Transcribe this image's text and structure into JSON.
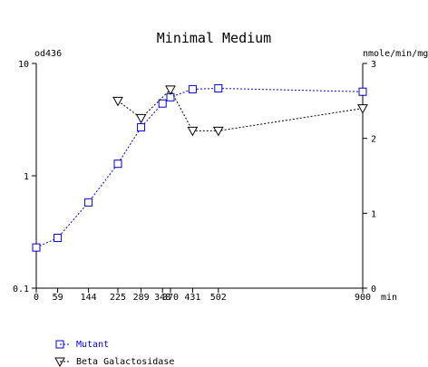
{
  "chart_data": {
    "type": "line",
    "title": "Minimal Medium",
    "x_unit": "min",
    "xlim": [
      0,
      900
    ],
    "x_ticks": [
      0,
      59,
      144,
      225,
      289,
      348,
      370,
      431,
      502,
      900
    ],
    "left_axis": {
      "label": "od436",
      "scale": "log",
      "ylim": [
        0.1,
        10
      ],
      "ticks": [
        0.1,
        1,
        10
      ],
      "tick_labels": [
        "0.1",
        "1",
        "10"
      ]
    },
    "right_axis": {
      "label": "nmole/min/mg",
      "scale": "linear",
      "ylim": [
        0,
        3
      ],
      "ticks": [
        0,
        1,
        2,
        3
      ],
      "tick_labels": [
        "0",
        "1",
        "2",
        "3"
      ]
    },
    "grid": false,
    "legend_position": "bottom-left",
    "series": [
      {
        "name": "Mutant",
        "axis": "left",
        "marker": "square",
        "color": "#0000cc",
        "x": [
          0,
          59,
          144,
          225,
          289,
          348,
          370,
          431,
          502,
          900
        ],
        "y": [
          0.23,
          0.28,
          0.58,
          1.28,
          2.7,
          4.4,
          5.0,
          5.9,
          6.0,
          5.6
        ]
      },
      {
        "name": "Beta Galactosidase",
        "axis": "right",
        "marker": "triangle-down",
        "color": "#000000",
        "x": [
          225,
          289,
          370,
          431,
          502,
          900
        ],
        "y": [
          2.5,
          2.27,
          2.65,
          2.1,
          2.1,
          2.4
        ]
      }
    ]
  }
}
